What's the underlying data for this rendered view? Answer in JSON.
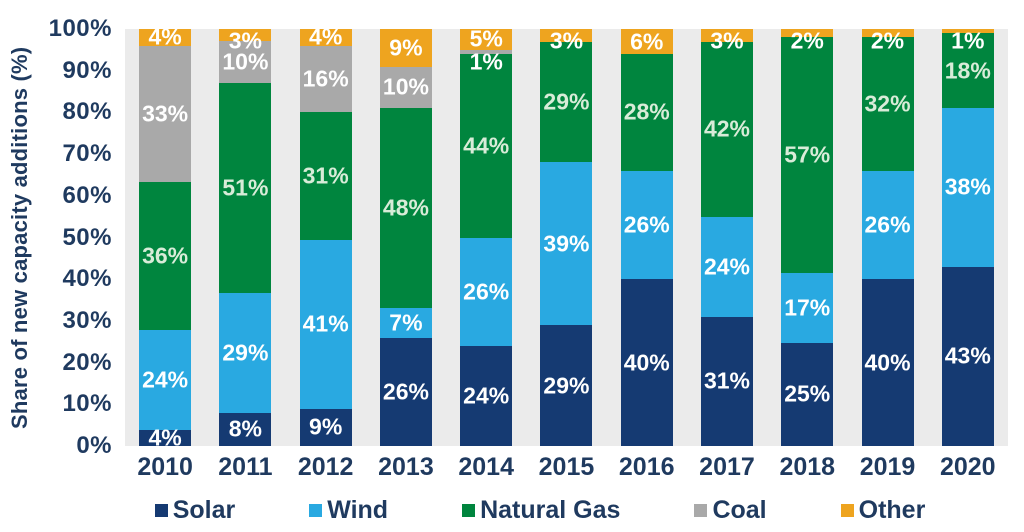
{
  "chart_data": {
    "type": "bar",
    "stacked": true,
    "orientation": "vertical",
    "title": "",
    "xlabel": "",
    "ylabel": "Share of new capacity additions (%)",
    "ylim": [
      0,
      100
    ],
    "y_tick_step": 10,
    "y_ticks": [
      "0%",
      "10%",
      "20%",
      "30%",
      "40%",
      "50%",
      "60%",
      "70%",
      "80%",
      "90%",
      "100%"
    ],
    "grid": false,
    "legend_position": "bottom",
    "categories": [
      "2010",
      "2011",
      "2012",
      "2013",
      "2014",
      "2015",
      "2016",
      "2017",
      "2018",
      "2019",
      "2020"
    ],
    "series": [
      {
        "name": "Solar",
        "color": "#153A72",
        "label_color": "#FFFFFF",
        "values": [
          4,
          8,
          9,
          26,
          24,
          29,
          40,
          31,
          25,
          40,
          43
        ]
      },
      {
        "name": "Wind",
        "color": "#29A9E1",
        "label_color": "#FFFFFF",
        "values": [
          24,
          29,
          41,
          7,
          26,
          39,
          26,
          24,
          17,
          26,
          38
        ]
      },
      {
        "name": "Natural Gas",
        "color": "#00853E",
        "label_color": "#D8ECD8",
        "values": [
          36,
          51,
          31,
          48,
          44,
          29,
          28,
          42,
          57,
          32,
          18
        ]
      },
      {
        "name": "Coal",
        "color": "#A9A9A9",
        "label_color": "#FFFFFF",
        "values": [
          33,
          10,
          16,
          10,
          1,
          0,
          0,
          0,
          0,
          0,
          0
        ]
      },
      {
        "name": "Other",
        "color": "#EEA41F",
        "label_color": "#FFFFFF",
        "values": [
          4,
          3,
          4,
          9,
          5,
          3,
          6,
          3,
          2,
          2,
          1
        ]
      }
    ],
    "data_label_suffix": "%"
  },
  "style": {
    "axis_text_color": "#1F3A5F",
    "plot_background": "#EBEBEB",
    "page_background": "#FFFFFF"
  }
}
